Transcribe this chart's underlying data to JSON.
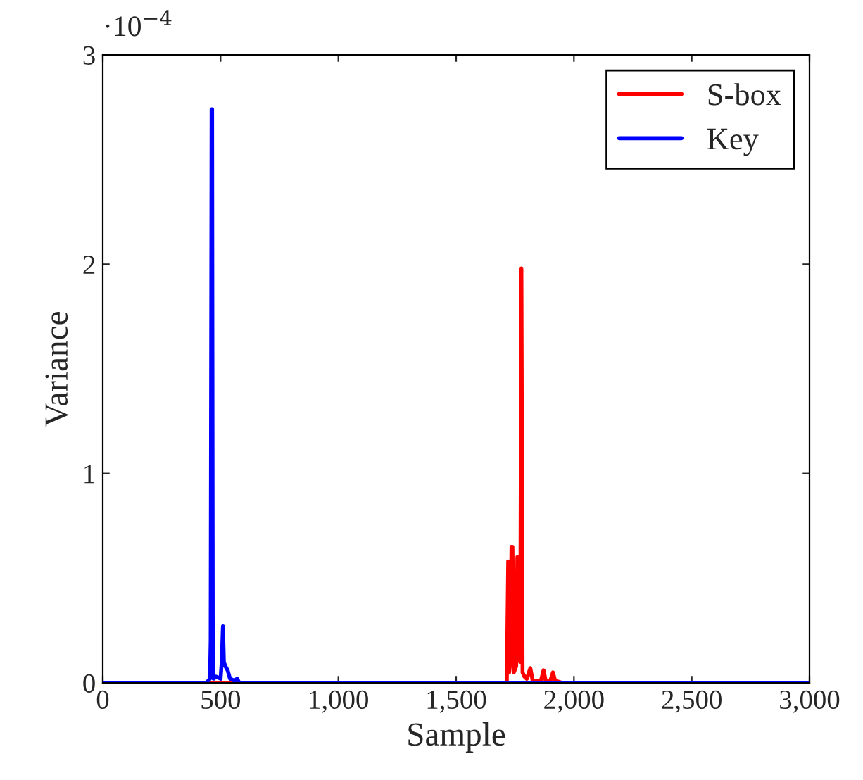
{
  "chart_data": {
    "type": "line",
    "xlabel": "Sample",
    "ylabel": "Variance",
    "annotations": [
      "·10$^{−4}$"
    ],
    "series": [
      {
        "name": "S-box",
        "color": "#ff0000",
        "x": [
          0,
          1700,
          1715,
          1721,
          1725,
          1730,
          1735,
          1739,
          1745,
          1755,
          1760,
          1767,
          1772,
          1777,
          1782,
          1790,
          1800,
          1815,
          1825,
          1860,
          1871,
          1880,
          1900,
          1911,
          1920,
          1950,
          3000
        ],
        "values": [
          0,
          0,
          0,
          0.58,
          0.05,
          0.1,
          0.65,
          0.65,
          0.05,
          0.08,
          0.6,
          0.55,
          0.1,
          1.98,
          0.05,
          0.03,
          0.02,
          0.07,
          0.01,
          0.01,
          0.06,
          0.01,
          0.01,
          0.05,
          0.01,
          0,
          0
        ]
      },
      {
        "name": "Key",
        "color": "#0000ff",
        "x": [
          0,
          440,
          455,
          458,
          462,
          464,
          467,
          470,
          480,
          500,
          505,
          510,
          514,
          520,
          530,
          540,
          560,
          570,
          580,
          600,
          3000
        ],
        "values": [
          0,
          0,
          0.02,
          0.2,
          2.74,
          2.74,
          0.05,
          0.02,
          0.03,
          0.02,
          0.1,
          0.27,
          0.1,
          0.08,
          0.06,
          0.02,
          0.01,
          0.02,
          0,
          0,
          0
        ]
      }
    ],
    "xlim": [
      0,
      3000
    ],
    "ylim": [
      0,
      3
    ],
    "xticks": [
      0,
      {
        "value": 500,
        "label": "500"
      },
      {
        "value": 1000,
        "label": "1,000"
      },
      {
        "value": 1500,
        "label": "1,500"
      },
      {
        "value": 2000,
        "label": "2,000"
      },
      {
        "value": 2500,
        "label": "2,500"
      },
      {
        "value": 3000,
        "label": "3,000"
      }
    ],
    "yticks": [
      0,
      1,
      2,
      3
    ],
    "grid": false,
    "legend": "top right",
    "marker": "none",
    "line_style": "solid"
  }
}
